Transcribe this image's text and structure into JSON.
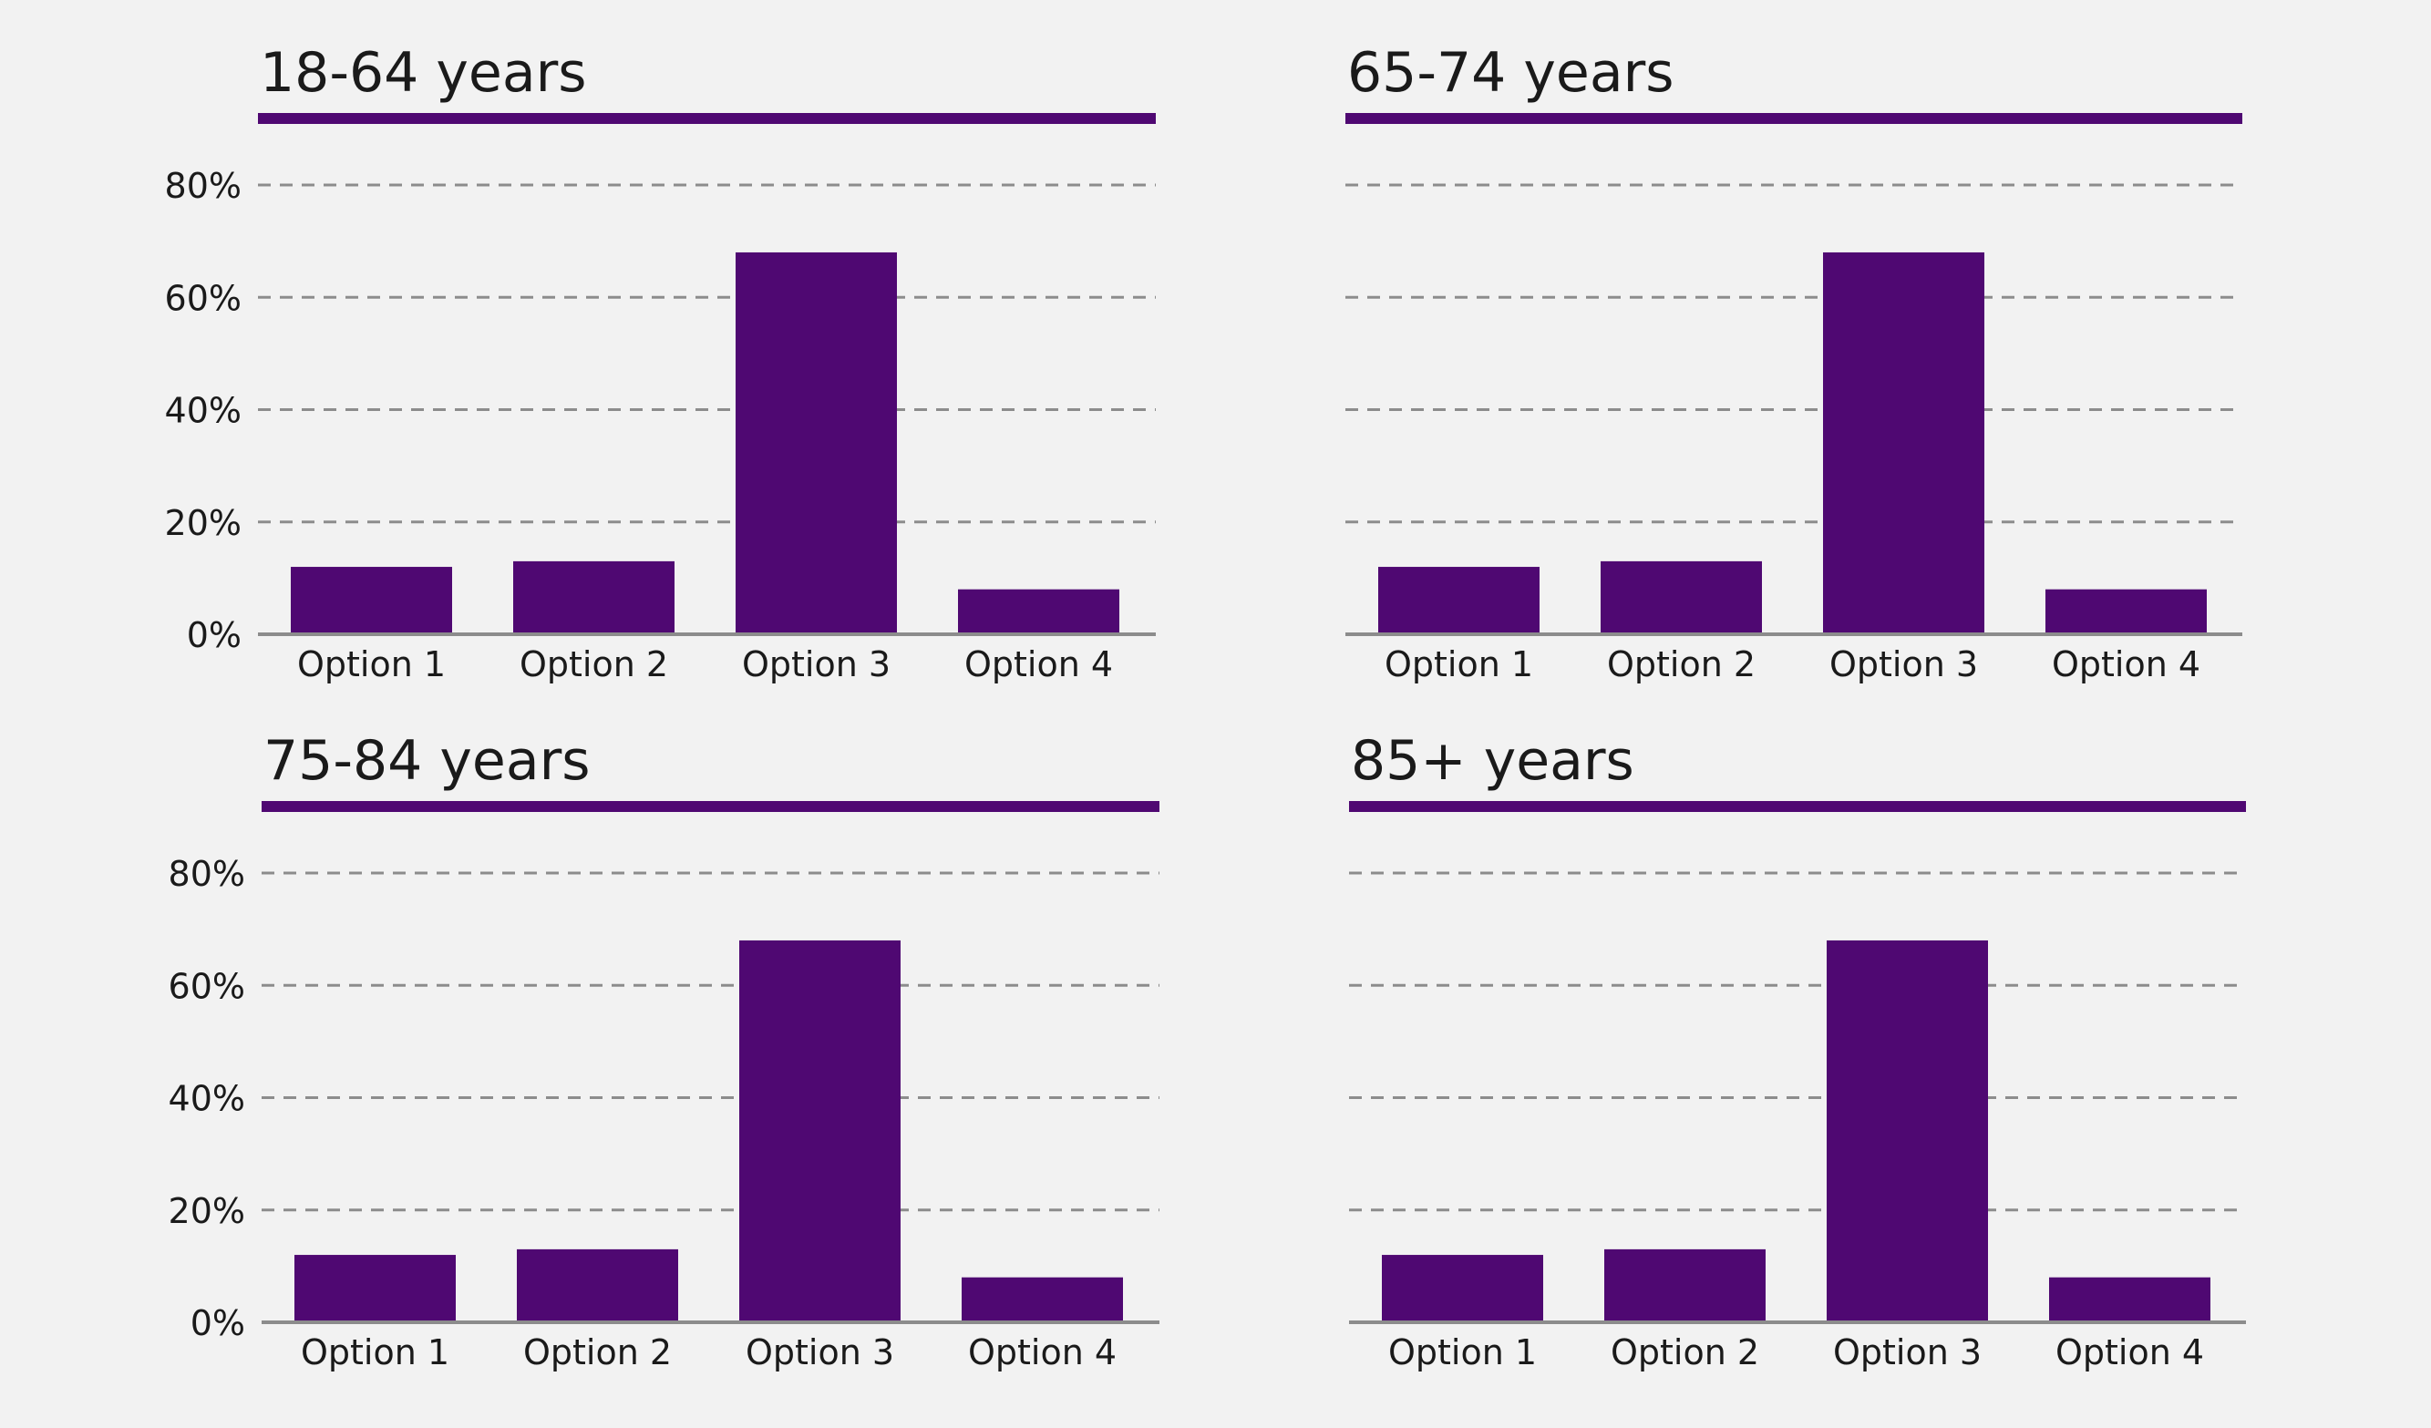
{
  "colors": {
    "background": "#f2f2f2",
    "bar": "#4f0872",
    "title_rule": "#4f0872",
    "grid": "#8c8c8c",
    "baseline": "#8c8c8c",
    "text": "#1a1a1a"
  },
  "chart_data": [
    {
      "type": "bar",
      "title": "18-64 years",
      "categories": [
        "Option 1",
        "Option 2",
        "Option 3",
        "Option 4"
      ],
      "values": [
        12,
        13,
        68,
        8
      ],
      "ylim": [
        0,
        80
      ],
      "yticks": [
        0,
        20,
        40,
        60,
        80
      ],
      "ytick_labels": [
        "0%",
        "20%",
        "40%",
        "60%",
        "80%"
      ],
      "show_yticks": true,
      "grid": true,
      "grid_style": "dashed",
      "legend": "none"
    },
    {
      "type": "bar",
      "title": "65-74 years",
      "categories": [
        "Option 1",
        "Option 2",
        "Option 3",
        "Option 4"
      ],
      "values": [
        12,
        13,
        68,
        8
      ],
      "ylim": [
        0,
        80
      ],
      "yticks": [
        0,
        20,
        40,
        60,
        80
      ],
      "ytick_labels": [
        "",
        "",
        "",
        "",
        ""
      ],
      "show_yticks": false,
      "grid": true,
      "grid_style": "dashed",
      "legend": "none"
    },
    {
      "type": "bar",
      "title": "75-84 years",
      "categories": [
        "Option 1",
        "Option 2",
        "Option 3",
        "Option 4"
      ],
      "values": [
        12,
        13,
        68,
        8
      ],
      "ylim": [
        0,
        80
      ],
      "yticks": [
        0,
        20,
        40,
        60,
        80
      ],
      "ytick_labels": [
        "0%",
        "20%",
        "40%",
        "60%",
        "80%"
      ],
      "show_yticks": true,
      "grid": true,
      "grid_style": "dashed",
      "legend": "none"
    },
    {
      "type": "bar",
      "title": "85+ years",
      "categories": [
        "Option 1",
        "Option 2",
        "Option 3",
        "Option 4"
      ],
      "values": [
        12,
        13,
        68,
        8
      ],
      "ylim": [
        0,
        80
      ],
      "yticks": [
        0,
        20,
        40,
        60,
        80
      ],
      "ytick_labels": [
        "",
        "",
        "",
        "",
        ""
      ],
      "show_yticks": false,
      "grid": true,
      "grid_style": "dashed",
      "legend": "none"
    }
  ]
}
